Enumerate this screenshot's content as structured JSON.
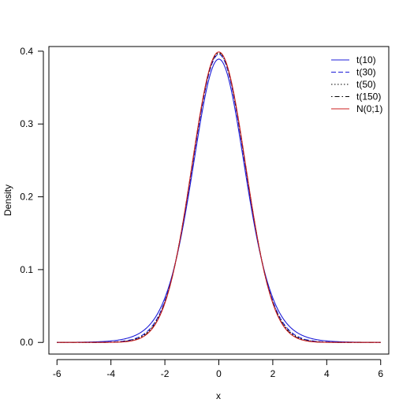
{
  "chart_data": {
    "type": "line",
    "title": "",
    "xlabel": "x",
    "ylabel": "Density",
    "xlim": [
      -6.3,
      6.3
    ],
    "ylim": [
      -0.016,
      0.4064
    ],
    "x_ticks": [
      -6,
      -4,
      -2,
      0,
      2,
      4,
      6
    ],
    "x_tick_labels": [
      "-6",
      "-4",
      "-2",
      "0",
      "2",
      "4",
      "6"
    ],
    "y_ticks": [
      0.0,
      0.1,
      0.2,
      0.3,
      0.4
    ],
    "y_tick_labels": [
      "0.0",
      "0.1",
      "0.2",
      "0.3",
      "0.4"
    ],
    "x_range": [
      -6,
      6
    ],
    "grid": false,
    "legend_position": "top-right",
    "series": [
      {
        "name": "t(10)",
        "distribution": "t",
        "df": 10,
        "color": "#1c1cd8",
        "dash": "solid",
        "peak": 0.389
      },
      {
        "name": "t(30)",
        "distribution": "t",
        "df": 30,
        "color": "#1c1cd8",
        "dash": "dashed",
        "peak": 0.396
      },
      {
        "name": "t(50)",
        "distribution": "t",
        "df": 50,
        "color": "#000000",
        "dash": "dotted",
        "peak": 0.397
      },
      {
        "name": "t(150)",
        "distribution": "t",
        "df": 150,
        "color": "#000000",
        "dash": "dotdash",
        "peak": 0.398
      },
      {
        "name": "N(0;1)",
        "distribution": "normal",
        "mean": 0,
        "sd": 1,
        "color": "#cc1f1f",
        "dash": "solid",
        "peak": 0.399
      }
    ]
  }
}
